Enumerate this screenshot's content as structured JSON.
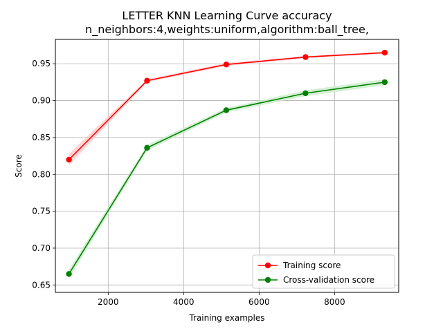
{
  "chart_data": {
    "type": "line",
    "title": "LETTER KNN Learning Curve accuracy",
    "subtitle": "n_neighbors:4,weights:uniform,algorithm:ball_tree,",
    "xlabel": "Training examples",
    "ylabel": "Score",
    "xlim": [
      600,
      9700
    ],
    "ylim": [
      0.64,
      0.983
    ],
    "xticks": [
      2000,
      4000,
      6000,
      8000
    ],
    "yticks": [
      0.65,
      0.7,
      0.75,
      0.8,
      0.85,
      0.9,
      0.95
    ],
    "xtick_labels": [
      "2000",
      "4000",
      "6000",
      "8000"
    ],
    "ytick_labels": [
      "0.65",
      "0.70",
      "0.75",
      "0.80",
      "0.85",
      "0.90",
      "0.95"
    ],
    "grid": true,
    "legend_position": "lower-right",
    "x": [
      960,
      3030,
      5130,
      7230,
      9330
    ],
    "series": [
      {
        "name": "Training score",
        "color": "#ff0000",
        "band_color": "#ffcccc",
        "values": [
          0.82,
          0.927,
          0.949,
          0.959,
          0.965
        ],
        "std": [
          0.008,
          0.002,
          0.002,
          0.0015,
          0.0015
        ]
      },
      {
        "name": "Cross-validation score",
        "color": "#008000",
        "band_color": "#c8ecc8",
        "values": [
          0.665,
          0.836,
          0.887,
          0.91,
          0.925
        ],
        "std": [
          0.006,
          0.004,
          0.003,
          0.004,
          0.004
        ]
      }
    ]
  }
}
